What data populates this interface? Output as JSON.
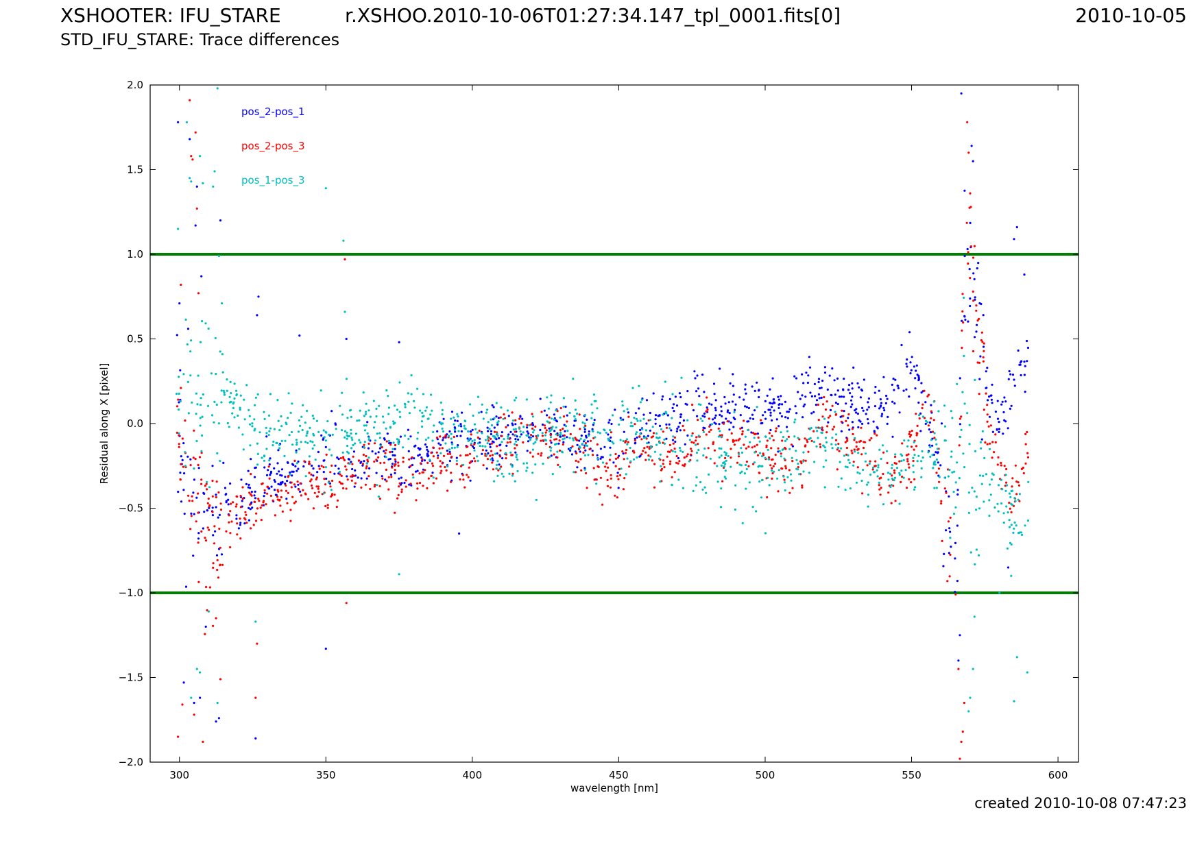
{
  "header": {
    "instrument": "XSHOOTER: IFU_STARE",
    "file": "r.XSHOO.2010-10-06T01:27:34.147_tpl_0001.fits[0]",
    "date": "2010-10-05",
    "subtitle": "STD_IFU_STARE: Trace differences"
  },
  "footer": {
    "created": "created 2010-10-08 07:47:23"
  },
  "chart_data": {
    "type": "scatter",
    "xlabel": "wavelength [nm]",
    "ylabel": "Residual along X [pixel]",
    "xlim": [
      290,
      607
    ],
    "ylim": [
      -2.0,
      2.0
    ],
    "xticks": [
      300,
      350,
      400,
      450,
      500,
      550,
      600
    ],
    "yticks": [
      -2.0,
      -1.5,
      -1.0,
      -0.5,
      0.0,
      0.5,
      1.0,
      1.5,
      2.0
    ],
    "xtick_labels": [
      "300",
      "350",
      "400",
      "450",
      "500",
      "550",
      "600"
    ],
    "ytick_labels": [
      "−2.0",
      "−1.5",
      "−1.0",
      "−0.5",
      "0.0",
      "0.5",
      "1.0",
      "1.5",
      "2.0"
    ],
    "legend_position": "upper-left",
    "grid": false,
    "reference_lines": [
      {
        "y": 1.0,
        "color": "#008000"
      },
      {
        "y": -1.0,
        "color": "#008000"
      }
    ],
    "series": [
      {
        "name": "pos_2-pos_1",
        "color": "#0000ff",
        "profile": {
          "x": [
            299,
            305,
            310,
            320,
            330,
            340,
            350,
            360,
            370,
            380,
            390,
            400,
            410,
            420,
            430,
            440,
            450,
            455,
            460,
            470,
            480,
            490,
            500,
            510,
            515,
            520,
            530,
            540,
            545,
            550,
            555,
            560,
            565,
            568,
            570,
            575,
            580,
            585,
            590
          ],
          "y": [
            0.0,
            -0.5,
            -0.6,
            -0.45,
            -0.35,
            -0.3,
            -0.2,
            -0.25,
            -0.2,
            -0.25,
            -0.12,
            -0.12,
            -0.1,
            -0.05,
            -0.05,
            -0.1,
            -0.15,
            -0.05,
            0.0,
            0.05,
            0.1,
            0.12,
            0.1,
            0.08,
            0.2,
            0.18,
            0.12,
            0.08,
            0.15,
            0.35,
            0.1,
            -0.3,
            -0.9,
            0.8,
            0.9,
            0.3,
            0.0,
            0.3,
            0.4
          ]
        },
        "spread": 0.09,
        "count": 950,
        "outliers": [
          [
            299.5,
            1.78
          ],
          [
            303.5,
            1.68
          ],
          [
            305.5,
            1.17
          ],
          [
            306,
            1.4
          ],
          [
            307.5,
            0.87
          ],
          [
            301.5,
            -1.53
          ],
          [
            305,
            -1.65
          ],
          [
            307,
            -1.62
          ],
          [
            309,
            -1.2
          ],
          [
            312.5,
            -1.76
          ],
          [
            313.5,
            -1.74
          ],
          [
            314,
            1.2
          ],
          [
            326,
            -1.86
          ],
          [
            326.5,
            0.64
          ],
          [
            327,
            0.75
          ],
          [
            341,
            0.52
          ],
          [
            350,
            -1.33
          ],
          [
            357,
            0.5
          ],
          [
            375,
            0.48
          ],
          [
            395.5,
            -0.65
          ],
          [
            567,
            1.95
          ],
          [
            570.5,
            1.64
          ],
          [
            571,
            1.55
          ],
          [
            586,
            1.16
          ],
          [
            585,
            1.09
          ],
          [
            588.5,
            0.88
          ],
          [
            566,
            -1.4
          ],
          [
            566.5,
            -1.25
          ],
          [
            583,
            -0.85
          ],
          [
            300,
            0.71
          ],
          [
            303,
            0.56
          ]
        ]
      },
      {
        "name": "pos_2-pos_3",
        "color": "#ff0000",
        "profile": {
          "x": [
            299,
            305,
            310,
            320,
            330,
            340,
            350,
            360,
            370,
            380,
            390,
            400,
            410,
            420,
            430,
            440,
            445,
            450,
            455,
            460,
            470,
            480,
            490,
            500,
            510,
            515,
            520,
            530,
            540,
            545,
            550,
            555,
            560,
            565,
            568,
            570,
            575,
            580,
            585,
            590
          ],
          "y": [
            0.0,
            -0.4,
            -0.65,
            -0.55,
            -0.45,
            -0.38,
            -0.35,
            -0.25,
            -0.28,
            -0.35,
            -0.22,
            -0.2,
            -0.15,
            -0.1,
            -0.05,
            -0.2,
            -0.3,
            -0.25,
            -0.1,
            -0.15,
            -0.22,
            -0.05,
            -0.1,
            -0.2,
            -0.2,
            -0.15,
            0.0,
            -0.12,
            -0.3,
            -0.35,
            -0.15,
            0.15,
            -0.3,
            -1.2,
            0.9,
            1.1,
            0.1,
            -0.3,
            -0.45,
            -0.2
          ]
        },
        "spread": 0.09,
        "count": 950,
        "outliers": [
          [
            303.5,
            1.91
          ],
          [
            304.5,
            1.56
          ],
          [
            304,
            1.58
          ],
          [
            305.5,
            1.72
          ],
          [
            306,
            1.27
          ],
          [
            300.5,
            0.82
          ],
          [
            299.5,
            -1.85
          ],
          [
            301,
            -1.66
          ],
          [
            305,
            -1.72
          ],
          [
            308,
            -1.88
          ],
          [
            312.5,
            -1.15
          ],
          [
            314,
            -1.51
          ],
          [
            326,
            -1.62
          ],
          [
            326.5,
            -1.3
          ],
          [
            356.5,
            0.97
          ],
          [
            357,
            -1.06
          ],
          [
            569,
            1.78
          ],
          [
            569.5,
            1.6
          ],
          [
            570,
            1.36
          ],
          [
            566.5,
            -1.98
          ],
          [
            567,
            -1.88
          ],
          [
            567.5,
            -1.82
          ],
          [
            568,
            -1.65
          ],
          [
            566,
            -1.45
          ],
          [
            300.5,
            0.21
          ],
          [
            306.5,
            0.77
          ]
        ]
      },
      {
        "name": "pos_1-pos_3",
        "color": "#00bfbf",
        "profile": {
          "x": [
            299,
            305,
            310,
            320,
            330,
            340,
            350,
            360,
            370,
            380,
            390,
            400,
            410,
            420,
            430,
            440,
            450,
            455,
            460,
            470,
            480,
            490,
            500,
            510,
            520,
            530,
            540,
            550,
            555,
            560,
            565,
            568,
            570,
            575,
            580,
            585,
            590
          ],
          "y": [
            0.3,
            0.2,
            0.1,
            0.1,
            -0.05,
            -0.08,
            -0.1,
            -0.05,
            -0.02,
            0.0,
            -0.05,
            -0.05,
            -0.1,
            -0.1,
            -0.05,
            -0.05,
            -0.05,
            -0.05,
            -0.1,
            -0.15,
            -0.2,
            -0.22,
            -0.25,
            -0.2,
            -0.12,
            -0.22,
            -0.3,
            -0.25,
            -0.15,
            -0.1,
            -0.3,
            0.1,
            -0.5,
            -0.3,
            -0.4,
            -0.55,
            -0.6
          ]
        },
        "spread": 0.12,
        "count": 1000,
        "outliers": [
          [
            302.5,
            1.78
          ],
          [
            303.5,
            1.45
          ],
          [
            304,
            1.43
          ],
          [
            299.5,
            1.15
          ],
          [
            307,
            1.58
          ],
          [
            308,
            1.42
          ],
          [
            312,
            1.49
          ],
          [
            313,
            1.98
          ],
          [
            313.5,
            0.99
          ],
          [
            314.5,
            0.71
          ],
          [
            311.5,
            1.4
          ],
          [
            350,
            1.39
          ],
          [
            356,
            1.08
          ],
          [
            356.5,
            0.66
          ],
          [
            304,
            -1.62
          ],
          [
            306,
            -1.45
          ],
          [
            307,
            -1.47
          ],
          [
            310,
            -1.11
          ],
          [
            313,
            -1.65
          ],
          [
            326,
            -1.17
          ],
          [
            375,
            -0.89
          ],
          [
            570,
            -1.62
          ],
          [
            569.5,
            -1.7
          ],
          [
            571,
            -1.45
          ],
          [
            585,
            -1.64
          ],
          [
            586,
            -1.38
          ],
          [
            589.5,
            -1.47
          ],
          [
            580,
            -1.0
          ],
          [
            584,
            -0.9
          ]
        ]
      }
    ]
  }
}
